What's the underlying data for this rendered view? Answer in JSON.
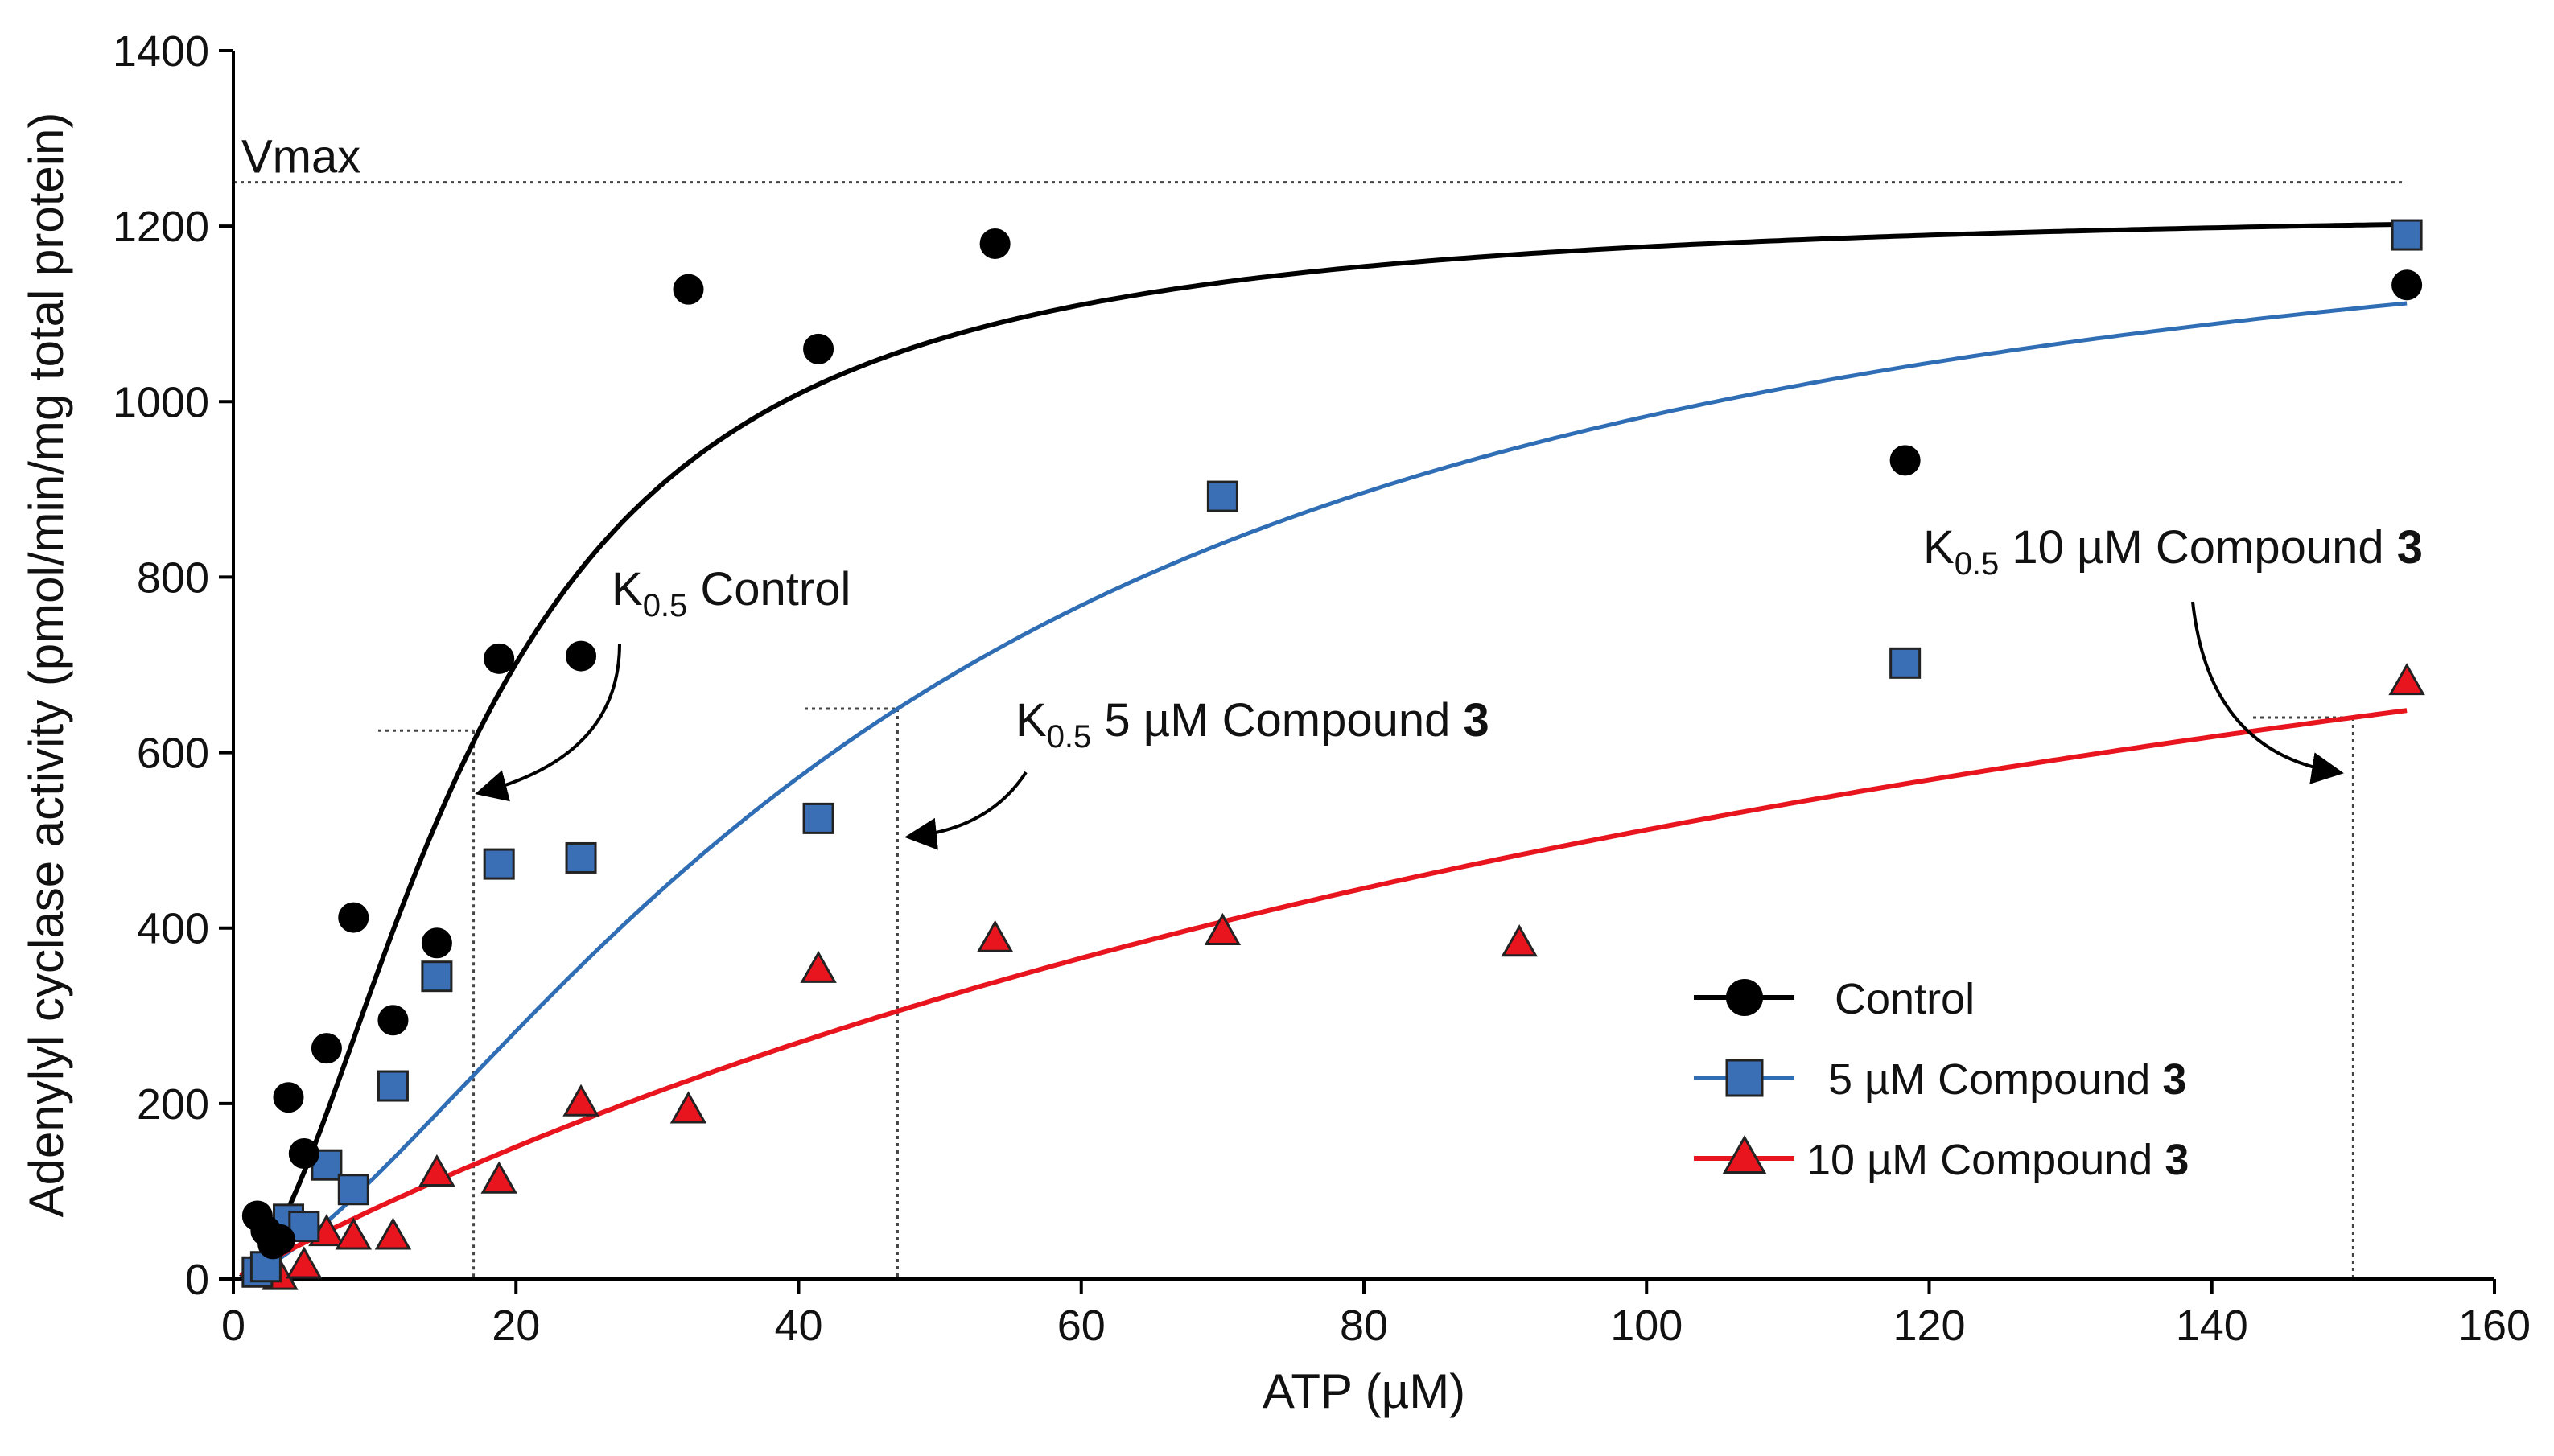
{
  "chart_data": {
    "type": "scatter",
    "title": "",
    "xlabel": "ATP (µM)",
    "ylabel": "Adenylyl cyclase activity (pmol/min/mg total protein)",
    "xlim": [
      0,
      160
    ],
    "ylim": [
      0,
      1400
    ],
    "xticks": [
      "0",
      "20",
      "40",
      "60",
      "80",
      "100",
      "120",
      "140",
      "160"
    ],
    "yticks": [
      "0",
      "200",
      "400",
      "600",
      "800",
      "1000",
      "1200",
      "1400"
    ],
    "legend_position": "bottom-right",
    "series": [
      {
        "name": "Control",
        "legend_label": "Control",
        "legend_suffix": "",
        "marker": "circle",
        "color": "#000000",
        "line_color": "#000000",
        "vmax": 1225,
        "k05": 17,
        "hill": 1.8,
        "points": [
          {
            "x": 1.7,
            "y": 72
          },
          {
            "x": 2.3,
            "y": 55
          },
          {
            "x": 2.8,
            "y": 40
          },
          {
            "x": 3.3,
            "y": 45
          },
          {
            "x": 3.9,
            "y": 207
          },
          {
            "x": 5.0,
            "y": 143
          },
          {
            "x": 6.6,
            "y": 263
          },
          {
            "x": 8.5,
            "y": 412
          },
          {
            "x": 11.3,
            "y": 295
          },
          {
            "x": 14.4,
            "y": 383
          },
          {
            "x": 18.8,
            "y": 707
          },
          {
            "x": 24.6,
            "y": 710
          },
          {
            "x": 32.2,
            "y": 1128
          },
          {
            "x": 41.4,
            "y": 1060
          },
          {
            "x": 53.9,
            "y": 1180
          },
          {
            "x": 118.3,
            "y": 933
          },
          {
            "x": 153.8,
            "y": 1133
          }
        ]
      },
      {
        "name": "5 µM Compound 3",
        "legend_label": "5 µM Compound ",
        "legend_suffix": "3",
        "marker": "square",
        "color": "#3a6fb6",
        "line_color": "#2f6db5",
        "vmax": 1300,
        "k05": 47,
        "hill": 1.5,
        "points": [
          {
            "x": 1.7,
            "y": 8
          },
          {
            "x": 2.3,
            "y": 14
          },
          {
            "x": 3.9,
            "y": 68
          },
          {
            "x": 5.0,
            "y": 60
          },
          {
            "x": 6.6,
            "y": 130
          },
          {
            "x": 8.5,
            "y": 102
          },
          {
            "x": 11.3,
            "y": 220
          },
          {
            "x": 14.4,
            "y": 345
          },
          {
            "x": 18.8,
            "y": 473
          },
          {
            "x": 24.6,
            "y": 480
          },
          {
            "x": 41.4,
            "y": 525
          },
          {
            "x": 70.0,
            "y": 892
          },
          {
            "x": 118.3,
            "y": 702
          },
          {
            "x": 153.8,
            "y": 1190
          }
        ]
      },
      {
        "name": "10 µM Compound 3",
        "legend_label": "10 µM Compound ",
        "legend_suffix": "3",
        "marker": "triangle",
        "color": "#e8141e",
        "line_color": "#e8141e",
        "vmax": 1280,
        "k05": 150,
        "hill": 1.0,
        "points": [
          {
            "x": 2.3,
            "y": 5
          },
          {
            "x": 3.3,
            "y": 2
          },
          {
            "x": 5.0,
            "y": 15
          },
          {
            "x": 6.6,
            "y": 52
          },
          {
            "x": 8.5,
            "y": 48
          },
          {
            "x": 11.3,
            "y": 48
          },
          {
            "x": 14.4,
            "y": 120
          },
          {
            "x": 18.8,
            "y": 112
          },
          {
            "x": 24.6,
            "y": 200
          },
          {
            "x": 32.2,
            "y": 192
          },
          {
            "x": 41.4,
            "y": 352
          },
          {
            "x": 53.9,
            "y": 387
          },
          {
            "x": 70.0,
            "y": 395
          },
          {
            "x": 91.0,
            "y": 382
          },
          {
            "x": 153.8,
            "y": 680
          }
        ]
      }
    ],
    "vmax_line": {
      "y": 1250,
      "label": "Vmax"
    },
    "annotations": [
      {
        "id": "control",
        "prefix": "K",
        "sub": "0.5",
        "text": " Control",
        "bold_suffix": "",
        "x_value": 17,
        "y_value": 625
      },
      {
        "id": "c5",
        "prefix": "K",
        "sub": "0.5",
        "text": " 5 µM Compound ",
        "bold_suffix": "3",
        "x_value": 47,
        "y_value": 650
      },
      {
        "id": "c10",
        "prefix": "K",
        "sub": "0.5",
        "text": " 10 µM Compound ",
        "bold_suffix": "3",
        "x_value": 150,
        "y_value": 640
      }
    ]
  }
}
